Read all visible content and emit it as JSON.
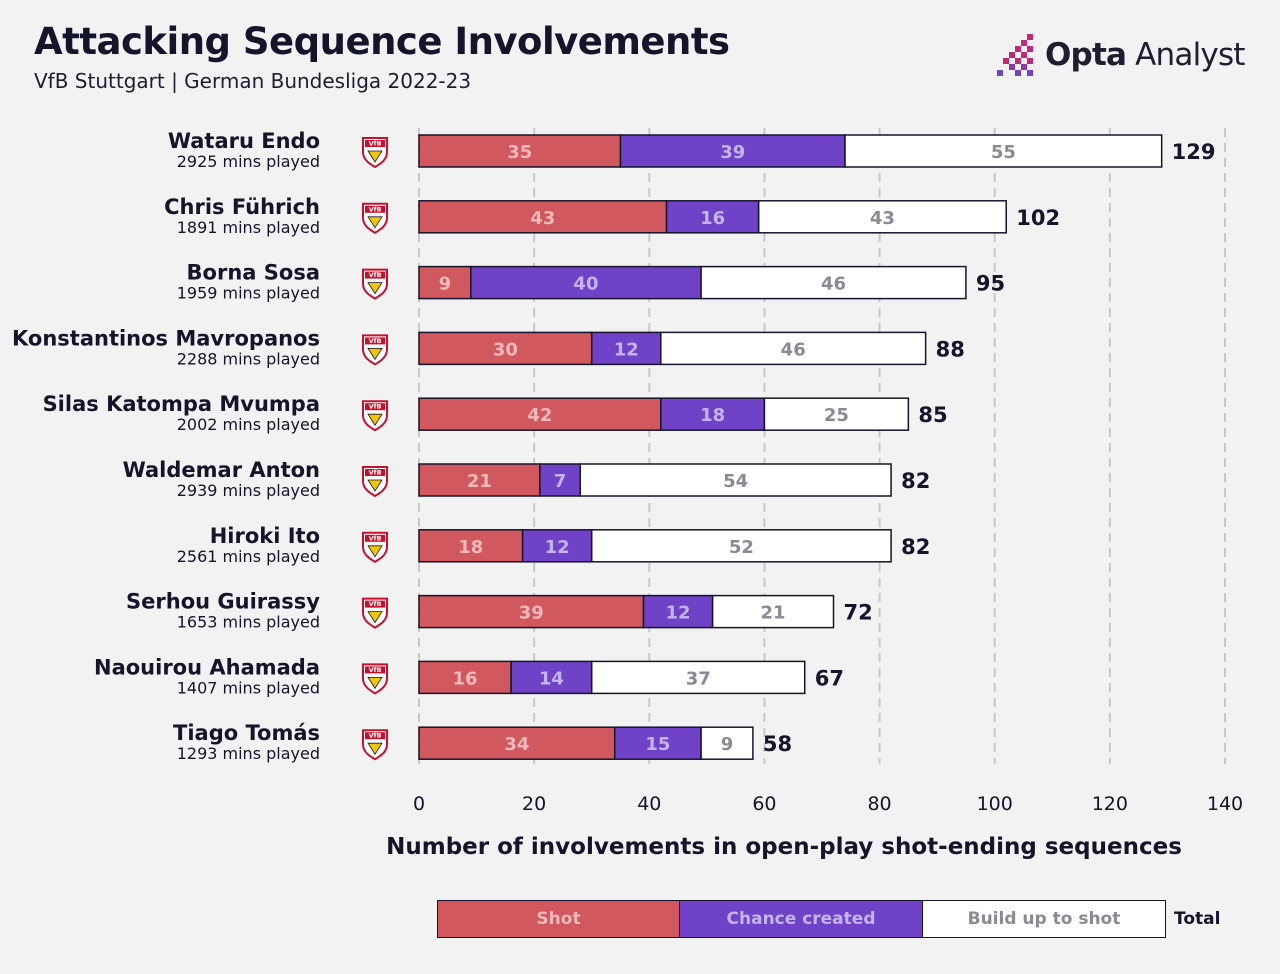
{
  "header": {
    "title": "Attacking Sequence Involvements",
    "subtitle": "VfB Stuttgart | German Bundesliga 2022-23",
    "brand_bold": "Opta",
    "brand_light": " Analyst",
    "team_crest_text": "VfB"
  },
  "colors": {
    "shot": "#d0585e",
    "chance": "#6f42c8",
    "build": "#ffffff",
    "shot_label": "#f0b8ba",
    "chance_label": "#c4b4ee",
    "build_label": "#8a8a95",
    "ink": "#14142a",
    "grid": "#c8c8c8",
    "background": "#f2f2f2"
  },
  "legend": {
    "shot": "Shot",
    "chance": "Chance created",
    "build": "Build up to shot",
    "total": "Total"
  },
  "chart_data": {
    "type": "bar",
    "orientation": "horizontal",
    "stacked": true,
    "title": "Attacking Sequence Involvements",
    "xlabel": "Number of involvements in open-play shot-ending sequences",
    "ylabel": "",
    "xlim": [
      0,
      140
    ],
    "xticks": [
      0,
      20,
      40,
      60,
      80,
      100,
      120,
      140
    ],
    "grid": "vertical dashed",
    "categories": [
      "Wataru Endo",
      "Chris Führich",
      "Borna Sosa",
      "Konstantinos Mavropanos",
      "Silas Katompa Mvumpa",
      "Waldemar Anton",
      "Hiroki Ito",
      "Serhou Guirassy",
      "Naouirou Ahamada",
      "Tiago Tomás"
    ],
    "minutes": [
      "2925 mins played",
      "1891 mins played",
      "1959 mins played",
      "2288 mins played",
      "2002 mins played",
      "2939 mins played",
      "2561 mins played",
      "1653 mins played",
      "1407 mins played",
      "1293 mins played"
    ],
    "series": [
      {
        "name": "Shot",
        "values": [
          35,
          43,
          9,
          30,
          42,
          21,
          18,
          39,
          16,
          34
        ]
      },
      {
        "name": "Chance created",
        "values": [
          39,
          16,
          40,
          12,
          18,
          7,
          12,
          12,
          14,
          15
        ]
      },
      {
        "name": "Build up to shot",
        "values": [
          55,
          43,
          46,
          46,
          25,
          54,
          52,
          21,
          37,
          9
        ]
      }
    ],
    "totals": [
      129,
      102,
      95,
      88,
      85,
      82,
      82,
      72,
      67,
      58
    ]
  }
}
